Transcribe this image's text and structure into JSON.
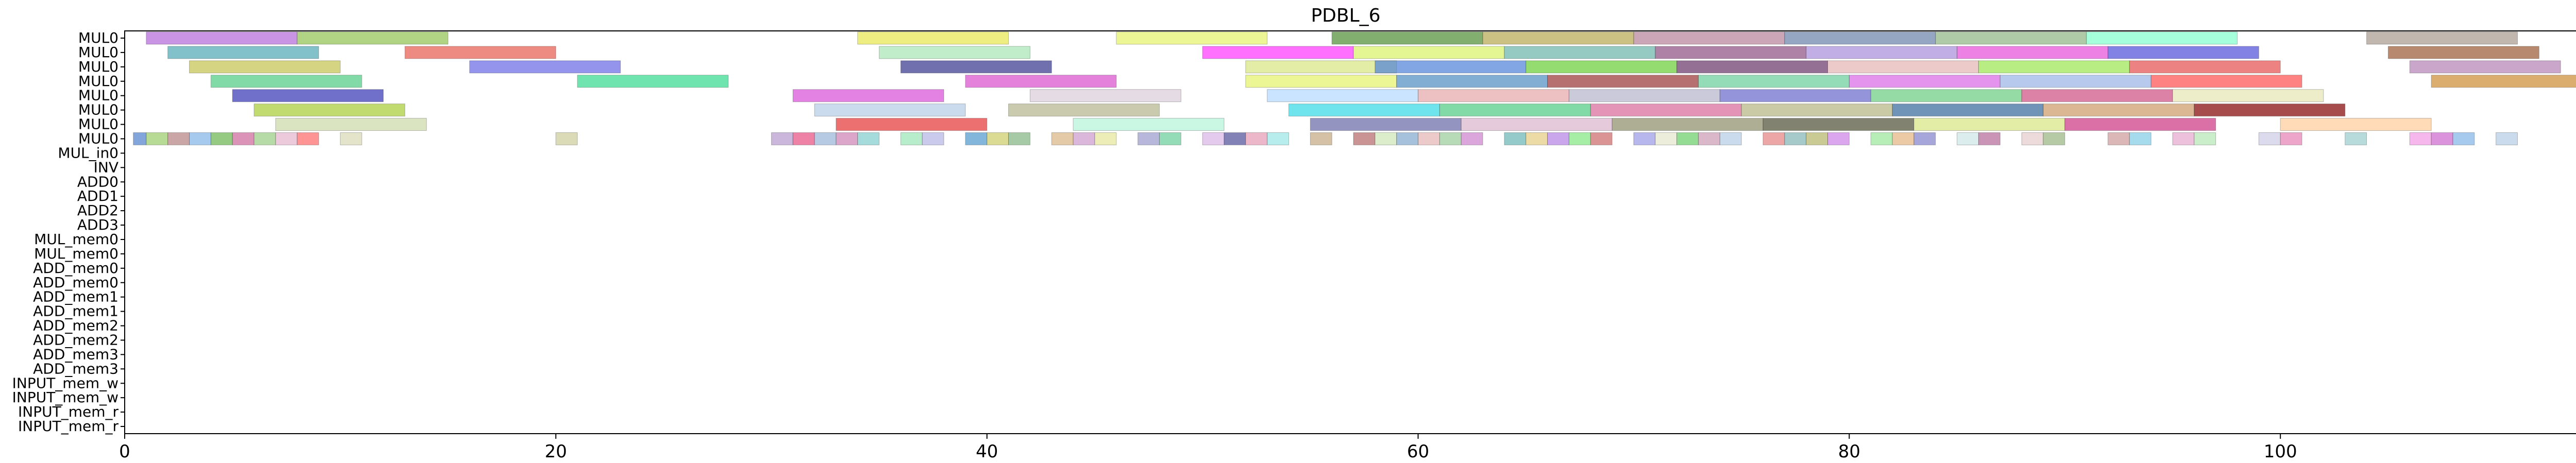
{
  "chart_data": {
    "type": "gantt",
    "title": "PDBL_6",
    "xlabel": "",
    "ylabel": "",
    "xlim": [
      0,
      114
    ],
    "xticks": [
      0,
      20,
      40,
      60,
      80,
      100
    ],
    "grid": false,
    "legend": "none",
    "rows": [
      "MUL0",
      "MUL0",
      "MUL0",
      "MUL0",
      "MUL0",
      "MUL0",
      "MUL0",
      "MUL0",
      "MUL_in0",
      "INV",
      "ADD0",
      "ADD1",
      "ADD2",
      "ADD3",
      "MUL_mem0",
      "MUL_mem0",
      "ADD_mem0",
      "ADD_mem0",
      "ADD_mem1",
      "ADD_mem1",
      "ADD_mem2",
      "ADD_mem2",
      "ADD_mem3",
      "ADD_mem3",
      "INPUT_mem_w",
      "INPUT_mem_w",
      "INPUT_mem_r",
      "INPUT_mem_r"
    ],
    "bars": [
      {
        "row": 0,
        "start": 1,
        "end": 8,
        "color": "#b266d9"
      },
      {
        "row": 0,
        "start": 8,
        "end": 15,
        "color": "#8fc24f"
      },
      {
        "row": 0,
        "start": 34,
        "end": 41,
        "color": "#e6e64d"
      },
      {
        "row": 0,
        "start": 46,
        "end": 53,
        "color": "#e6f266"
      },
      {
        "row": 0,
        "start": 56,
        "end": 63,
        "color": "#4d8c33"
      },
      {
        "row": 0,
        "start": 63,
        "end": 70,
        "color": "#b3a64d"
      },
      {
        "row": 0,
        "start": 70,
        "end": 77,
        "color": "#b38099"
      },
      {
        "row": 0,
        "start": 77,
        "end": 84,
        "color": "#6680a6"
      },
      {
        "row": 0,
        "start": 84,
        "end": 91,
        "color": "#8cb380"
      },
      {
        "row": 0,
        "start": 91,
        "end": 98,
        "color": "#80ffcc"
      },
      {
        "row": 0,
        "start": 104,
        "end": 111,
        "color": "#a6998c"
      },
      {
        "row": 1,
        "start": 2,
        "end": 9,
        "color": "#4da6b3"
      },
      {
        "row": 1,
        "start": 13,
        "end": 20,
        "color": "#e6594d"
      },
      {
        "row": 1,
        "start": 35,
        "end": 42,
        "color": "#a6e6b3"
      },
      {
        "row": 1,
        "start": 50,
        "end": 57,
        "color": "#ff33ff"
      },
      {
        "row": 1,
        "start": 57,
        "end": 64,
        "color": "#d9f266"
      },
      {
        "row": 1,
        "start": 64,
        "end": 71,
        "color": "#66b3a6"
      },
      {
        "row": 1,
        "start": 71,
        "end": 78,
        "color": "#8c4d80"
      },
      {
        "row": 1,
        "start": 78,
        "end": 85,
        "color": "#a68cd9"
      },
      {
        "row": 1,
        "start": 85,
        "end": 92,
        "color": "#e64dd9"
      },
      {
        "row": 1,
        "start": 92,
        "end": 99,
        "color": "#4d4dd9"
      },
      {
        "row": 1,
        "start": 105,
        "end": 112,
        "color": "#995933"
      },
      {
        "row": 2,
        "start": 3,
        "end": 10,
        "color": "#c2c24d"
      },
      {
        "row": 2,
        "start": 16,
        "end": 23,
        "color": "#6666e6"
      },
      {
        "row": 2,
        "start": 36,
        "end": 43,
        "color": "#33338c"
      },
      {
        "row": 2,
        "start": 52,
        "end": 59,
        "color": "#d9e680"
      },
      {
        "row": 2,
        "start": 58,
        "end": 65,
        "color": "#4d80d9"
      },
      {
        "row": 2,
        "start": 65,
        "end": 72,
        "color": "#66cc33"
      },
      {
        "row": 2,
        "start": 72,
        "end": 79,
        "color": "#663366"
      },
      {
        "row": 2,
        "start": 79,
        "end": 86,
        "color": "#e6b3b3"
      },
      {
        "row": 2,
        "start": 86,
        "end": 93,
        "color": "#99e64d"
      },
      {
        "row": 2,
        "start": 93,
        "end": 100,
        "color": "#e64d4d"
      },
      {
        "row": 2,
        "start": 106,
        "end": 113,
        "color": "#b380b3"
      },
      {
        "row": 3,
        "start": 4,
        "end": 11,
        "color": "#4dcc80"
      },
      {
        "row": 3,
        "start": 21,
        "end": 28,
        "color": "#33d98c"
      },
      {
        "row": 3,
        "start": 39,
        "end": 46,
        "color": "#d94dcc"
      },
      {
        "row": 3,
        "start": 52,
        "end": 59,
        "color": "#e6f266"
      },
      {
        "row": 3,
        "start": 59,
        "end": 66,
        "color": "#4d8cc2"
      },
      {
        "row": 3,
        "start": 66,
        "end": 73,
        "color": "#993333"
      },
      {
        "row": 3,
        "start": 73,
        "end": 80,
        "color": "#66cc99"
      },
      {
        "row": 3,
        "start": 80,
        "end": 87,
        "color": "#d966e6"
      },
      {
        "row": 3,
        "start": 87,
        "end": 94,
        "color": "#99b3e6"
      },
      {
        "row": 3,
        "start": 94,
        "end": 101,
        "color": "#ff4d4d"
      },
      {
        "row": 3,
        "start": 107,
        "end": 114,
        "color": "#cc8c33"
      },
      {
        "row": 4,
        "start": 5,
        "end": 12,
        "color": "#3333b3"
      },
      {
        "row": 4,
        "start": 31,
        "end": 38,
        "color": "#d94dd9"
      },
      {
        "row": 4,
        "start": 42,
        "end": 49,
        "color": "#d9ccd9"
      },
      {
        "row": 4,
        "start": 53,
        "end": 60,
        "color": "#b3d9ff"
      },
      {
        "row": 4,
        "start": 60,
        "end": 67,
        "color": "#e6a6a6"
      },
      {
        "row": 4,
        "start": 67,
        "end": 74,
        "color": "#b3b3cc"
      },
      {
        "row": 4,
        "start": 74,
        "end": 81,
        "color": "#6666cc"
      },
      {
        "row": 4,
        "start": 81,
        "end": 88,
        "color": "#66cc80"
      },
      {
        "row": 4,
        "start": 88,
        "end": 95,
        "color": "#cc4d80"
      },
      {
        "row": 4,
        "start": 95,
        "end": 102,
        "color": "#e6e6b3"
      },
      {
        "row": 5,
        "start": 6,
        "end": 13,
        "color": "#a6cc33"
      },
      {
        "row": 5,
        "start": 32,
        "end": 39,
        "color": "#b3cce6"
      },
      {
        "row": 5,
        "start": 41,
        "end": 48,
        "color": "#b3b38c"
      },
      {
        "row": 5,
        "start": 54,
        "end": 61,
        "color": "#33d9e6"
      },
      {
        "row": 5,
        "start": 61,
        "end": 68,
        "color": "#4dcc80"
      },
      {
        "row": 5,
        "start": 68,
        "end": 75,
        "color": "#d96699"
      },
      {
        "row": 5,
        "start": 75,
        "end": 82,
        "color": "#b3b380"
      },
      {
        "row": 5,
        "start": 82,
        "end": 89,
        "color": "#336699"
      },
      {
        "row": 5,
        "start": 89,
        "end": 96,
        "color": "#cc9966"
      },
      {
        "row": 5,
        "start": 96,
        "end": 103,
        "color": "#800000"
      },
      {
        "row": 6,
        "start": 7,
        "end": 14,
        "color": "#ccd9a6"
      },
      {
        "row": 6,
        "start": 33,
        "end": 40,
        "color": "#e63333"
      },
      {
        "row": 6,
        "start": 44,
        "end": 51,
        "color": "#b3f2d9"
      },
      {
        "row": 6,
        "start": 55,
        "end": 62,
        "color": "#6666a6"
      },
      {
        "row": 6,
        "start": 62,
        "end": 69,
        "color": "#d9b3cc"
      },
      {
        "row": 6,
        "start": 69,
        "end": 76,
        "color": "#8c8c66"
      },
      {
        "row": 6,
        "start": 76,
        "end": 83,
        "color": "#4d4d33"
      },
      {
        "row": 6,
        "start": 83,
        "end": 90,
        "color": "#d9e680"
      },
      {
        "row": 6,
        "start": 90,
        "end": 97,
        "color": "#cc3380"
      },
      {
        "row": 6,
        "start": 100,
        "end": 107,
        "color": "#ffcc99"
      },
      {
        "row": 7,
        "start": 0.4,
        "end": 1,
        "color": "#4d80cc"
      },
      {
        "row": 7,
        "start": 1,
        "end": 2,
        "color": "#99cc66"
      },
      {
        "row": 7,
        "start": 2,
        "end": 3,
        "color": "#b38080"
      },
      {
        "row": 7,
        "start": 3,
        "end": 4,
        "color": "#80b3e6"
      },
      {
        "row": 7,
        "start": 4,
        "end": 5,
        "color": "#66b34d"
      },
      {
        "row": 7,
        "start": 5,
        "end": 6,
        "color": "#cc6699"
      },
      {
        "row": 7,
        "start": 6,
        "end": 7,
        "color": "#99cc80"
      },
      {
        "row": 7,
        "start": 7,
        "end": 8,
        "color": "#e6b3cc"
      },
      {
        "row": 7,
        "start": 8,
        "end": 9,
        "color": "#ff6666"
      },
      {
        "row": 7,
        "start": 10,
        "end": 11,
        "color": "#d9d9b3"
      },
      {
        "row": 7,
        "start": 20,
        "end": 21,
        "color": "#cccc99"
      },
      {
        "row": 7,
        "start": 30,
        "end": 31,
        "color": "#b399cc"
      },
      {
        "row": 7,
        "start": 31,
        "end": 32,
        "color": "#e64d80"
      },
      {
        "row": 7,
        "start": 32,
        "end": 33,
        "color": "#99b3d9"
      },
      {
        "row": 7,
        "start": 33,
        "end": 34,
        "color": "#cc80b3"
      },
      {
        "row": 7,
        "start": 34,
        "end": 35,
        "color": "#80cccc"
      },
      {
        "row": 7,
        "start": 36,
        "end": 37,
        "color": "#99e6b3"
      },
      {
        "row": 7,
        "start": 37,
        "end": 38,
        "color": "#b3b3e6"
      },
      {
        "row": 7,
        "start": 39,
        "end": 40,
        "color": "#4d99cc"
      },
      {
        "row": 7,
        "start": 40,
        "end": 41,
        "color": "#cccc66"
      },
      {
        "row": 7,
        "start": 41,
        "end": 42,
        "color": "#80b380"
      },
      {
        "row": 7,
        "start": 43,
        "end": 44,
        "color": "#d9b380"
      },
      {
        "row": 7,
        "start": 44,
        "end": 45,
        "color": "#cc99cc"
      },
      {
        "row": 7,
        "start": 45,
        "end": 46,
        "color": "#e6e699"
      },
      {
        "row": 7,
        "start": 47,
        "end": 48,
        "color": "#9999cc"
      },
      {
        "row": 7,
        "start": 48,
        "end": 49,
        "color": "#66cc99"
      },
      {
        "row": 7,
        "start": 50,
        "end": 51,
        "color": "#d9b3e6"
      },
      {
        "row": 7,
        "start": 51,
        "end": 52,
        "color": "#4d4d99"
      },
      {
        "row": 7,
        "start": 52,
        "end": 53,
        "color": "#e699b3"
      },
      {
        "row": 7,
        "start": 53,
        "end": 54,
        "color": "#99e6e6"
      },
      {
        "row": 7,
        "start": 55,
        "end": 56,
        "color": "#c2a680"
      },
      {
        "row": 7,
        "start": 57,
        "end": 58,
        "color": "#b36666"
      },
      {
        "row": 7,
        "start": 58,
        "end": 59,
        "color": "#cce6b3"
      },
      {
        "row": 7,
        "start": 59,
        "end": 60,
        "color": "#80a6cc"
      },
      {
        "row": 7,
        "start": 60,
        "end": 61,
        "color": "#e6b3b3"
      },
      {
        "row": 7,
        "start": 61,
        "end": 62,
        "color": "#99cc99"
      },
      {
        "row": 7,
        "start": 62,
        "end": 63,
        "color": "#cc80cc"
      },
      {
        "row": 7,
        "start": 64,
        "end": 65,
        "color": "#66b3b3"
      },
      {
        "row": 7,
        "start": 65,
        "end": 66,
        "color": "#e6cc80"
      },
      {
        "row": 7,
        "start": 66,
        "end": 67,
        "color": "#b380e6"
      },
      {
        "row": 7,
        "start": 67,
        "end": 68,
        "color": "#80e680"
      },
      {
        "row": 7,
        "start": 68,
        "end": 69,
        "color": "#cc6666"
      },
      {
        "row": 7,
        "start": 70,
        "end": 71,
        "color": "#9999e6"
      },
      {
        "row": 7,
        "start": 71,
        "end": 72,
        "color": "#e6e6cc"
      },
      {
        "row": 7,
        "start": 72,
        "end": 73,
        "color": "#66cc66"
      },
      {
        "row": 7,
        "start": 73,
        "end": 74,
        "color": "#cc99b3"
      },
      {
        "row": 7,
        "start": 74,
        "end": 75,
        "color": "#b3cce6"
      },
      {
        "row": 7,
        "start": 76,
        "end": 77,
        "color": "#e68080"
      },
      {
        "row": 7,
        "start": 77,
        "end": 78,
        "color": "#80b3b3"
      },
      {
        "row": 7,
        "start": 78,
        "end": 79,
        "color": "#b3b366"
      },
      {
        "row": 7,
        "start": 79,
        "end": 80,
        "color": "#cc80e6"
      },
      {
        "row": 7,
        "start": 81,
        "end": 82,
        "color": "#99e699"
      },
      {
        "row": 7,
        "start": 82,
        "end": 83,
        "color": "#e6b380"
      },
      {
        "row": 7,
        "start": 83,
        "end": 84,
        "color": "#8080cc"
      },
      {
        "row": 7,
        "start": 85,
        "end": 86,
        "color": "#cce6e6"
      },
      {
        "row": 7,
        "start": 86,
        "end": 87,
        "color": "#b36699"
      },
      {
        "row": 7,
        "start": 88,
        "end": 89,
        "color": "#e6cccc"
      },
      {
        "row": 7,
        "start": 89,
        "end": 90,
        "color": "#99b380"
      },
      {
        "row": 7,
        "start": 92,
        "end": 93,
        "color": "#cc9999"
      },
      {
        "row": 7,
        "start": 93,
        "end": 94,
        "color": "#80cce6"
      },
      {
        "row": 7,
        "start": 95,
        "end": 96,
        "color": "#e6a6cc"
      },
      {
        "row": 7,
        "start": 96,
        "end": 97,
        "color": "#b3e6b3"
      },
      {
        "row": 7,
        "start": 99,
        "end": 100,
        "color": "#cccce6"
      },
      {
        "row": 7,
        "start": 100,
        "end": 101,
        "color": "#e680b3"
      },
      {
        "row": 7,
        "start": 103,
        "end": 104,
        "color": "#99cccc"
      },
      {
        "row": 7,
        "start": 106,
        "end": 107,
        "color": "#f299e6"
      },
      {
        "row": 7,
        "start": 107,
        "end": 108,
        "color": "#cc66cc"
      },
      {
        "row": 7,
        "start": 108,
        "end": 109,
        "color": "#80b3e6"
      },
      {
        "row": 7,
        "start": 110,
        "end": 111,
        "color": "#b3cce6"
      }
    ]
  }
}
